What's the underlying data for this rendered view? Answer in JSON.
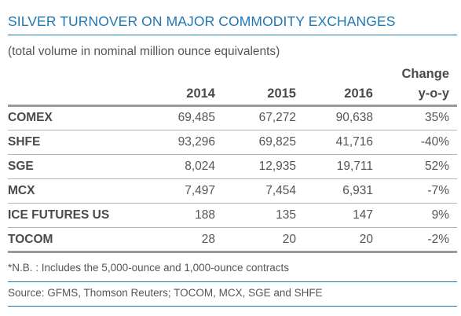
{
  "title": "SILVER TURNOVER ON MAJOR COMMODITY EXCHANGES",
  "subtitle": "(total volume in nominal million ounce equivalents)",
  "columns": {
    "y2014": "2014",
    "y2015": "2015",
    "y2016": "2016",
    "change_line1": "Change",
    "change_line2": "y-o-y"
  },
  "rows": [
    {
      "exchange": "COMEX",
      "v2014": "69,485",
      "v2015": "67,272",
      "v2016": "90,638",
      "change": "35%"
    },
    {
      "exchange": "SHFE",
      "v2014": "93,296",
      "v2015": "69,825",
      "v2016": "41,716",
      "change": "-40%"
    },
    {
      "exchange": "SGE",
      "v2014": "8,024",
      "v2015": "12,935",
      "v2016": "19,711",
      "change": "52%"
    },
    {
      "exchange": "MCX",
      "v2014": "7,497",
      "v2015": "7,454",
      "v2016": "6,931",
      "change": "-7%"
    },
    {
      "exchange": "ICE FUTURES US",
      "v2014": "188",
      "v2015": "135",
      "v2016": "147",
      "change": "9%"
    },
    {
      "exchange": "TOCOM",
      "v2014": "28",
      "v2015": "20",
      "v2016": "20",
      "change": "-2%"
    }
  ],
  "note": "*N.B. : Includes the 5,000-ounce and 1,000-ounce contracts",
  "source": "Source: GFMS, Thomson Reuters; TOCOM, MCX, SGE and SHFE",
  "colors": {
    "title": "#1f77b4",
    "rules": "#9a9a9a"
  }
}
